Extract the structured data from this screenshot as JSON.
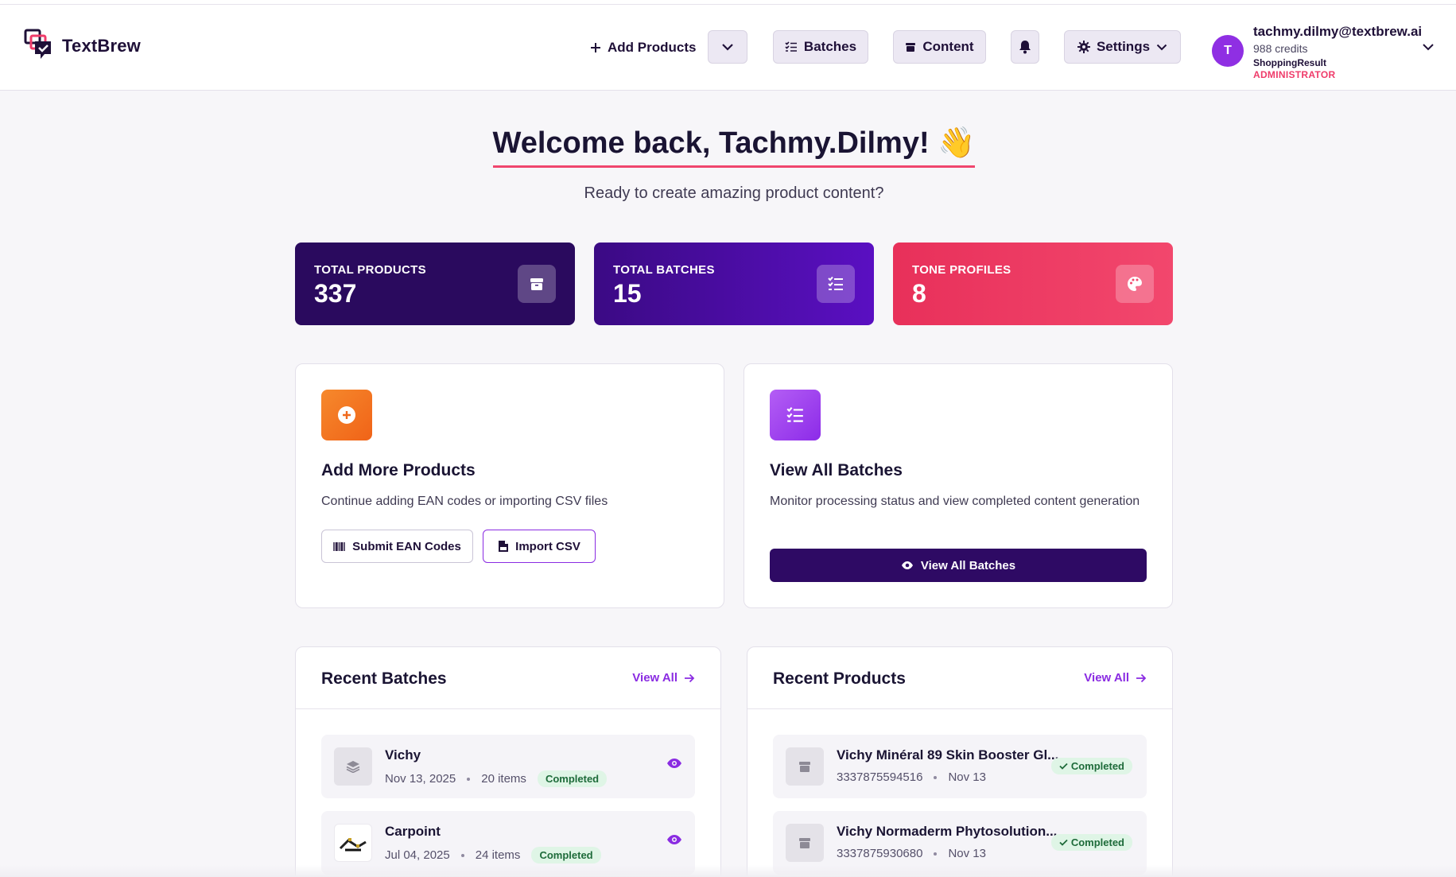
{
  "app": {
    "name": "TextBrew"
  },
  "header": {
    "add_products_label": "Add Products",
    "batches_label": "Batches",
    "content_label": "Content",
    "settings_label": "Settings",
    "icons": [
      "plus-icon",
      "chevron-down-icon",
      "list-check-icon",
      "box-icon",
      "bell-icon",
      "gear-icon"
    ]
  },
  "user": {
    "avatar_initial": "T",
    "email": "tachmy.dilmy@textbrew.ai",
    "credits": "988 credits",
    "organization": "ShoppingResult",
    "role": "ADMINISTRATOR"
  },
  "welcome": {
    "title": "Welcome back, Tachmy.Dilmy! 👋",
    "subtitle": "Ready to create amazing product content?"
  },
  "stats": [
    {
      "label": "TOTAL PRODUCTS",
      "value": "337",
      "icon": "box-icon",
      "color": "#2a0a5e"
    },
    {
      "label": "TOTAL BATCHES",
      "value": "15",
      "icon": "list-check-icon",
      "color": "#4a0ba0"
    },
    {
      "label": "TONE PROFILES",
      "value": "8",
      "icon": "palette-icon",
      "color": "#ef3a62"
    }
  ],
  "actions": {
    "add_products": {
      "title": "Add More Products",
      "description": "Continue adding EAN codes or importing CSV files",
      "submit_ean_label": "Submit EAN Codes",
      "import_csv_label": "Import CSV"
    },
    "view_batches": {
      "title": "View All Batches",
      "description": "Monitor processing status and view completed content generation",
      "button_label": "View All Batches"
    }
  },
  "recent_batches": {
    "title": "Recent Batches",
    "view_all_label": "View All",
    "items": [
      {
        "name": "Vichy",
        "date": "Nov 13, 2025",
        "items": "20 items",
        "status": "Completed"
      },
      {
        "name": "Carpoint",
        "date": "Jul 04, 2025",
        "items": "24 items",
        "status": "Completed"
      }
    ]
  },
  "recent_products": {
    "title": "Recent Products",
    "view_all_label": "View All",
    "items": [
      {
        "name": "Vichy Minéral 89 Skin Booster Gl...",
        "ean": "3337875594516",
        "date": "Nov 13",
        "status": "Completed"
      },
      {
        "name": "Vichy Normaderm Phytosolution...",
        "ean": "3337875930680",
        "date": "Nov 13",
        "status": "Completed"
      }
    ]
  },
  "colors": {
    "brand_dark": "#2e0a64",
    "accent_purple": "#8a2be2",
    "accent_pink": "#ef3b6a",
    "success_bg": "#dff5e6",
    "success_text": "#1e6b3a"
  }
}
